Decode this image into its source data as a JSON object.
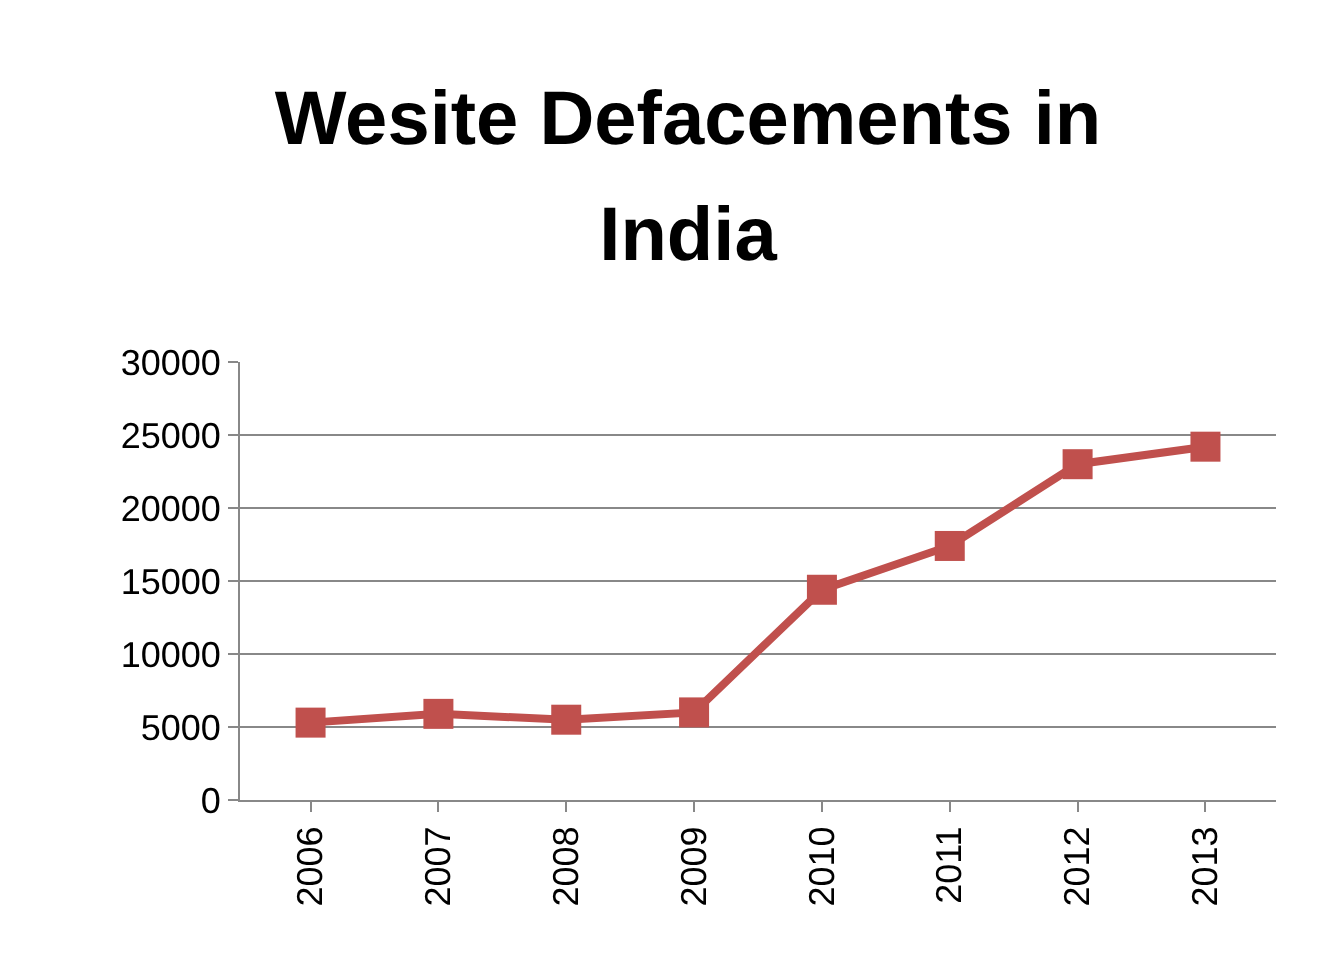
{
  "chart_data": {
    "type": "line",
    "title": "Wesite Defacements in India",
    "categories": [
      "2006",
      "2007",
      "2008",
      "2009",
      "2010",
      "2011",
      "2012",
      "2013"
    ],
    "series": [
      {
        "color": "#c0504d",
        "values": [
          5300,
          5900,
          5500,
          6000,
          14400,
          17400,
          23000,
          24200
        ]
      }
    ],
    "ylim": [
      0,
      30000
    ],
    "yticks": [
      0,
      5000,
      10000,
      15000,
      20000,
      25000,
      30000
    ],
    "grid": "y",
    "marker": "square",
    "line_style": "solid"
  }
}
